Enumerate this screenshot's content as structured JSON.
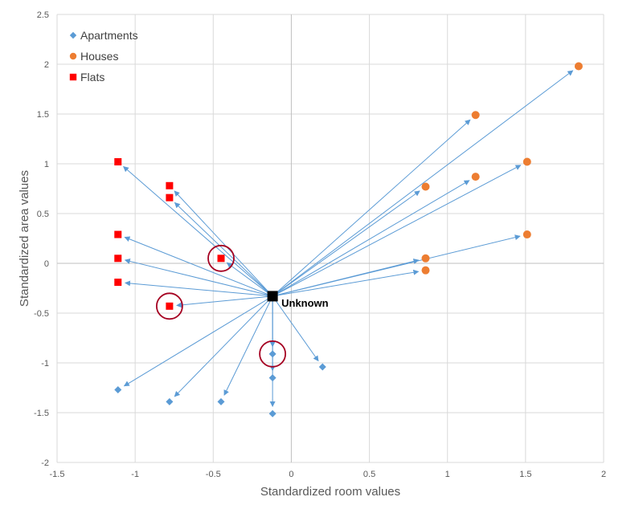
{
  "chart_data": {
    "type": "scatter",
    "title": "",
    "xlabel": "Standardized room values",
    "ylabel": "Standardized area values",
    "xlim": [
      -1.5,
      2
    ],
    "ylim": [
      -2,
      2.5
    ],
    "x_ticks": [
      -1.5,
      -1,
      -0.5,
      0,
      0.5,
      1,
      1.5,
      2
    ],
    "y_ticks": [
      -2,
      -1.5,
      -1,
      -0.5,
      0,
      0.5,
      1,
      1.5,
      2,
      2.5
    ],
    "grid": true,
    "legend_position": "top-left",
    "series": [
      {
        "name": "Apartments",
        "marker": "diamond",
        "color": "#5b9bd5",
        "points": [
          {
            "x": -1.11,
            "y": -1.27
          },
          {
            "x": -0.78,
            "y": -1.39
          },
          {
            "x": -0.45,
            "y": -1.39
          },
          {
            "x": -0.12,
            "y": -0.91
          },
          {
            "x": -0.12,
            "y": -1.15
          },
          {
            "x": -0.12,
            "y": -1.51
          },
          {
            "x": 0.2,
            "y": -1.04
          }
        ]
      },
      {
        "name": "Houses",
        "marker": "circle",
        "color": "#ed7d31",
        "points": [
          {
            "x": 0.86,
            "y": 0.77
          },
          {
            "x": 0.86,
            "y": 0.05
          },
          {
            "x": 0.86,
            "y": -0.07
          },
          {
            "x": 1.18,
            "y": 1.49
          },
          {
            "x": 1.18,
            "y": 0.87
          },
          {
            "x": 1.51,
            "y": 1.02
          },
          {
            "x": 1.51,
            "y": 0.29
          },
          {
            "x": 1.84,
            "y": 1.98
          }
        ]
      },
      {
        "name": "Flats",
        "marker": "square",
        "color": "#ff0000",
        "points": [
          {
            "x": -1.11,
            "y": 1.02
          },
          {
            "x": -1.11,
            "y": 0.29
          },
          {
            "x": -1.11,
            "y": 0.05
          },
          {
            "x": -1.11,
            "y": -0.19
          },
          {
            "x": -0.78,
            "y": 0.78
          },
          {
            "x": -0.78,
            "y": 0.66
          },
          {
            "x": -0.78,
            "y": -0.43
          },
          {
            "x": -0.45,
            "y": 0.05
          }
        ]
      }
    ],
    "unknown_point": {
      "label": "Unknown",
      "x": -0.12,
      "y": -0.33,
      "color": "#000000"
    },
    "arrows_from_unknown_to_all_points": true,
    "arrow_color": "#5b9bd5",
    "highlight_circles": [
      {
        "x": -0.45,
        "y": 0.05
      },
      {
        "x": -0.78,
        "y": -0.43
      },
      {
        "x": -0.12,
        "y": -0.91
      }
    ],
    "highlight_color": "#a50021"
  }
}
